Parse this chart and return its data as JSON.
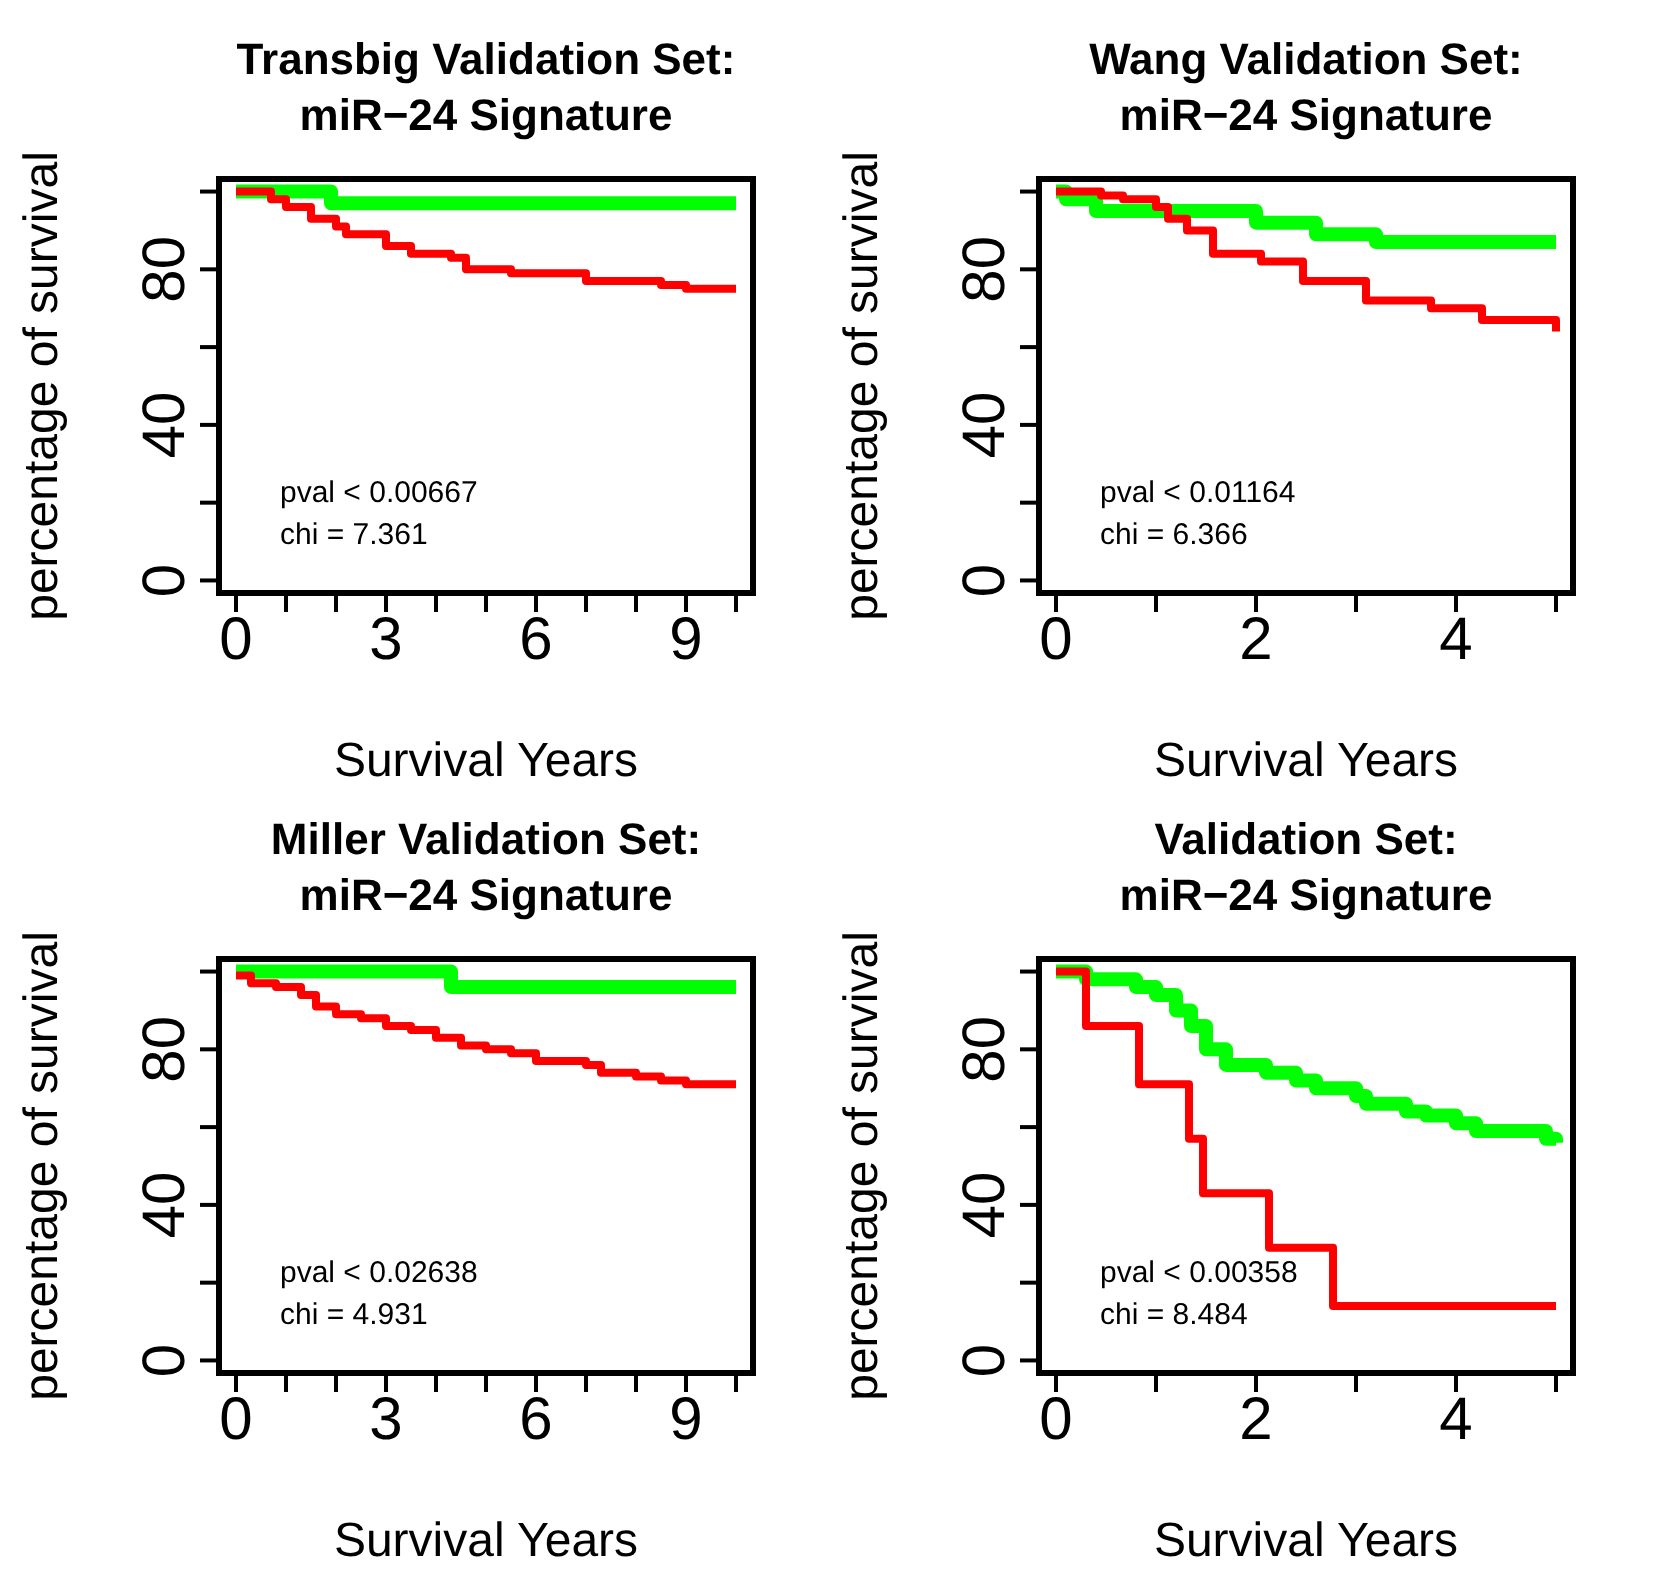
{
  "chart_data": [
    {
      "type": "step",
      "title": "Transbig Validation Set:\nmiR−24 Signature",
      "xlabel": "Survival Years",
      "ylabel": "percentage of survival",
      "xlim": [
        -0.4,
        10.4
      ],
      "xticks": [
        0,
        {
          "value": 1,
          "label": null
        },
        {
          "value": 2,
          "label": null
        },
        3,
        {
          "value": 4,
          "label": null
        },
        {
          "value": 5,
          "label": null
        },
        6,
        {
          "value": 7,
          "label": null
        },
        {
          "value": 8,
          "label": null
        },
        9,
        {
          "value": 10,
          "label": null
        }
      ],
      "ylim": [
        -4,
        104
      ],
      "yticks": [
        0,
        {
          "value": 20,
          "label": null
        },
        40,
        {
          "value": 60,
          "label": null
        },
        80,
        {
          "value": 100,
          "label": null
        }
      ],
      "annotations": [
        "pval < 0.00667",
        "chi = 7.361"
      ],
      "series": [
        {
          "color": "#00ff00",
          "x": [
            0,
            1.9,
            10
          ],
          "values": [
            100,
            97,
            97
          ]
        },
        {
          "color": "#ff0000",
          "x": [
            0,
            0.7,
            1.0,
            1.5,
            2,
            2.2,
            3,
            3.5,
            4.3,
            4.6,
            5.5,
            7,
            8.5,
            9,
            10
          ],
          "values": [
            100,
            98,
            96,
            93,
            91,
            89,
            86,
            84,
            83,
            80,
            79,
            77,
            76,
            75,
            75
          ]
        }
      ]
    },
    {
      "type": "step",
      "title": "Wang Validation Set:\nmiR−24 Signature",
      "xlabel": "Survival Years",
      "ylabel": "percentage of survival",
      "xlim": [
        -0.2,
        5.2
      ],
      "xticks": [
        0,
        {
          "value": 1,
          "label": null
        },
        2,
        {
          "value": 3,
          "label": null
        },
        4,
        {
          "value": 5,
          "label": null
        }
      ],
      "ylim": [
        -4,
        104
      ],
      "yticks": [
        0,
        {
          "value": 20,
          "label": null
        },
        40,
        {
          "value": 60,
          "label": null
        },
        80,
        {
          "value": 100,
          "label": null
        }
      ],
      "annotations": [
        "pval < 0.01164",
        "chi = 6.366"
      ],
      "series": [
        {
          "color": "#00ff00",
          "x": [
            0,
            0.1,
            0.4,
            2.0,
            2.6,
            3.2,
            5
          ],
          "values": [
            100,
            98,
            95,
            92,
            89,
            87,
            87
          ]
        },
        {
          "color": "#ff0000",
          "x": [
            0,
            0.45,
            0.67,
            1.0,
            1.12,
            1.31,
            1.57,
            2.05,
            2.47,
            3.1,
            3.75,
            4.26,
            5
          ],
          "values": [
            100,
            99,
            98,
            96,
            93,
            90,
            84,
            82,
            77,
            72,
            70,
            67,
            64
          ]
        }
      ]
    },
    {
      "type": "step",
      "title": "Miller Validation Set:\nmiR−24 Signature",
      "xlabel": "Survival Years",
      "ylabel": "percentage of survival",
      "xlim": [
        -0.4,
        10.4
      ],
      "xticks": [
        0,
        {
          "value": 1,
          "label": null
        },
        {
          "value": 2,
          "label": null
        },
        3,
        {
          "value": 4,
          "label": null
        },
        {
          "value": 5,
          "label": null
        },
        6,
        {
          "value": 7,
          "label": null
        },
        {
          "value": 8,
          "label": null
        },
        9,
        {
          "value": 10,
          "label": null
        }
      ],
      "ylim": [
        -4,
        104
      ],
      "yticks": [
        0,
        {
          "value": 20,
          "label": null
        },
        40,
        {
          "value": 60,
          "label": null
        },
        80,
        {
          "value": 100,
          "label": null
        }
      ],
      "annotations": [
        "pval < 0.02638",
        "chi = 4.931"
      ],
      "series": [
        {
          "color": "#00ff00",
          "x": [
            0,
            4.3,
            10
          ],
          "values": [
            100,
            96,
            96
          ]
        },
        {
          "color": "#ff0000",
          "x": [
            0,
            0.3,
            0.8,
            1.3,
            1.6,
            2,
            2.5,
            3,
            3.5,
            4,
            4.5,
            5,
            5.5,
            6,
            7,
            7.3,
            8,
            8.5,
            9,
            10
          ],
          "values": [
            99,
            97,
            96,
            94,
            91,
            89,
            88,
            86,
            85,
            83,
            81,
            80,
            79,
            77,
            76,
            74,
            73,
            72,
            71,
            71
          ]
        }
      ]
    },
    {
      "type": "step",
      "title": "Validation Set:\nmiR−24 Signature",
      "xlabel": "Survival Years",
      "ylabel": "percentage of survival",
      "xlim": [
        -0.2,
        5.2
      ],
      "xticks": [
        0,
        {
          "value": 1,
          "label": null
        },
        2,
        {
          "value": 3,
          "label": null
        },
        4,
        {
          "value": 5,
          "label": null
        }
      ],
      "ylim": [
        -4,
        104
      ],
      "yticks": [
        0,
        {
          "value": 20,
          "label": null
        },
        40,
        {
          "value": 60,
          "label": null
        },
        80,
        {
          "value": 100,
          "label": null
        }
      ],
      "annotations": [
        "pval < 0.00358",
        "chi = 8.484"
      ],
      "series": [
        {
          "color": "#00ff00",
          "x": [
            0,
            0.3,
            0.8,
            1.0,
            1.2,
            1.35,
            1.5,
            1.7,
            2.1,
            2.4,
            2.6,
            3.0,
            3.1,
            3.5,
            3.7,
            4.0,
            4.2,
            4.9,
            5
          ],
          "values": [
            100,
            98,
            96,
            94,
            90,
            86,
            80,
            76,
            74,
            72,
            70,
            68,
            66,
            64,
            63,
            61,
            59,
            57,
            56
          ]
        },
        {
          "color": "#ff0000",
          "x": [
            0,
            0.3,
            0.83,
            1.33,
            1.47,
            2.13,
            2.77,
            5
          ],
          "values": [
            100,
            86,
            71,
            57,
            43,
            29,
            14,
            14
          ]
        }
      ]
    }
  ]
}
